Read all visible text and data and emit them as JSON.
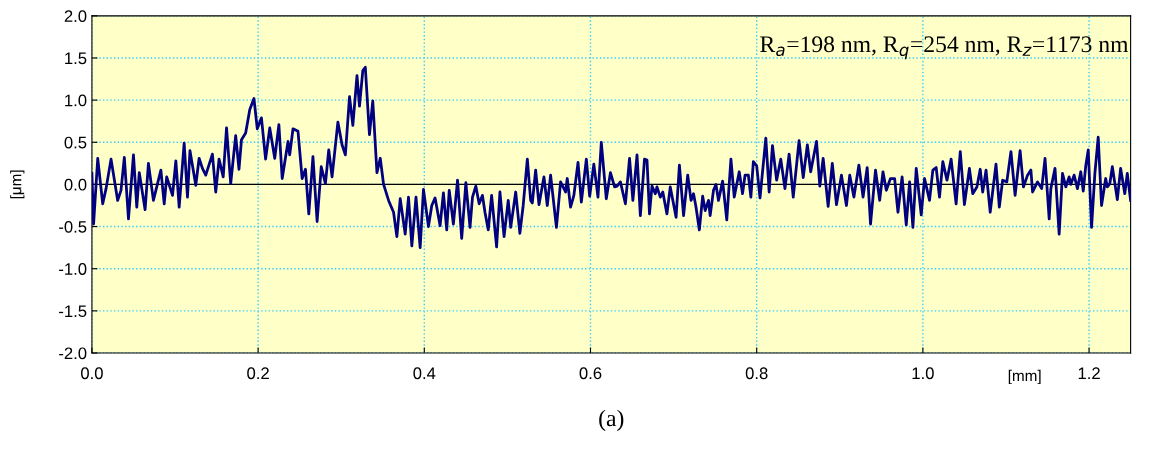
{
  "chart_data": {
    "type": "line",
    "xlabel": "[mm]",
    "ylabel": "[μm]",
    "xlim": [
      0,
      1.25
    ],
    "xticks": [
      {
        "value": 0,
        "label": "0.0"
      },
      0.2,
      0.4,
      0.6,
      0.8,
      {
        "value": 1,
        "label": "1.0"
      },
      1.2
    ],
    "ylim": [
      -2,
      2
    ],
    "yticks": [
      {
        "value": -2,
        "label": "-2.0"
      },
      -1.5,
      {
        "value": -1,
        "label": "-1.0"
      },
      -0.5,
      {
        "value": 0,
        "label": "0.0"
      },
      0.5,
      {
        "value": 1,
        "label": "1.0"
      },
      1.5,
      {
        "value": 2,
        "label": "2.0"
      }
    ],
    "grid": true,
    "legend": false,
    "marker": "none",
    "line_style": "solid",
    "ref_lines": [
      {
        "axis": "y",
        "value": 0,
        "color": "#000000"
      }
    ],
    "annotations": [
      "R$_{a}$=198 nm, R$_{q}$=254 nm, R$_{z}$=1173 nm",
      "(a)"
    ],
    "series": [
      {
        "color": "#000080",
        "x": [
          0.0,
          0.002,
          0.007,
          0.013,
          0.017,
          0.023,
          0.031,
          0.035,
          0.039,
          0.044,
          0.05,
          0.054,
          0.057,
          0.064,
          0.068,
          0.074,
          0.08,
          0.083,
          0.087,
          0.09,
          0.097,
          0.101,
          0.105,
          0.111,
          0.115,
          0.118,
          0.125,
          0.129,
          0.133,
          0.137,
          0.145,
          0.149,
          0.153,
          0.158,
          0.162,
          0.167,
          0.173,
          0.177,
          0.18,
          0.185,
          0.19,
          0.195,
          0.199,
          0.204,
          0.209,
          0.214,
          0.22,
          0.225,
          0.229,
          0.236,
          0.238,
          0.242,
          0.248,
          0.253,
          0.257,
          0.261,
          0.266,
          0.271,
          0.276,
          0.281,
          0.285,
          0.289,
          0.296,
          0.301,
          0.305,
          0.31,
          0.314,
          0.319,
          0.322,
          0.326,
          0.329,
          0.334,
          0.338,
          0.343,
          0.347,
          0.351,
          0.357,
          0.363,
          0.367,
          0.371,
          0.377,
          0.381,
          0.385,
          0.39,
          0.395,
          0.399,
          0.405,
          0.409,
          0.413,
          0.419,
          0.423,
          0.427,
          0.43,
          0.435,
          0.44,
          0.445,
          0.45,
          0.455,
          0.458,
          0.462,
          0.466,
          0.47,
          0.473,
          0.477,
          0.481,
          0.487,
          0.491,
          0.496,
          0.501,
          0.504,
          0.51,
          0.515,
          0.519,
          0.524,
          0.528,
          0.53,
          0.534,
          0.538,
          0.544,
          0.548,
          0.552,
          0.559,
          0.564,
          0.57,
          0.572,
          0.576,
          0.58,
          0.585,
          0.589,
          0.595,
          0.599,
          0.604,
          0.609,
          0.613,
          0.619,
          0.624,
          0.629,
          0.632,
          0.636,
          0.642,
          0.647,
          0.651,
          0.656,
          0.66,
          0.665,
          0.668,
          0.671,
          0.674,
          0.678,
          0.68,
          0.684,
          0.687,
          0.692,
          0.696,
          0.703,
          0.707,
          0.712,
          0.717,
          0.721,
          0.724,
          0.727,
          0.731,
          0.735,
          0.738,
          0.742,
          0.744,
          0.748,
          0.751,
          0.754,
          0.759,
          0.764,
          0.769,
          0.773,
          0.779,
          0.783,
          0.786,
          0.79,
          0.793,
          0.796,
          0.8,
          0.804,
          0.811,
          0.815,
          0.819,
          0.824,
          0.829,
          0.834,
          0.839,
          0.844,
          0.851,
          0.856,
          0.861,
          0.865,
          0.872,
          0.876,
          0.88,
          0.886,
          0.891,
          0.896,
          0.902,
          0.908,
          0.912,
          0.917,
          0.923,
          0.928,
          0.933,
          0.937,
          0.943,
          0.948,
          0.952,
          0.956,
          0.961,
          0.966,
          0.97,
          0.975,
          0.98,
          0.984,
          0.988,
          0.992,
          0.998,
          1.002,
          1.008,
          1.012,
          1.016,
          1.02,
          1.024,
          1.029,
          1.034,
          1.04,
          1.045,
          1.05,
          1.056,
          1.06,
          1.065,
          1.069,
          1.072,
          1.076,
          1.081,
          1.088,
          1.092,
          1.096,
          1.101,
          1.106,
          1.111,
          1.117,
          1.121,
          1.126,
          1.13,
          1.132,
          1.138,
          1.143,
          1.147,
          1.152,
          1.154,
          1.159,
          1.164,
          1.168,
          1.172,
          1.176,
          1.178,
          1.182,
          1.186,
          1.19,
          1.193,
          1.196,
          1.199,
          1.203,
          1.207,
          1.211,
          1.215,
          1.22,
          1.222,
          1.225,
          1.228,
          1.234,
          1.238,
          1.243,
          1.246,
          1.25
        ],
        "values": [
          0.13,
          -0.47,
          0.31,
          -0.23,
          -0.05,
          0.3,
          -0.19,
          -0.07,
          0.32,
          -0.41,
          0.35,
          -0.27,
          0.14,
          -0.3,
          0.25,
          -0.19,
          0.05,
          0.17,
          -0.23,
          0.09,
          -0.13,
          0.28,
          -0.27,
          0.49,
          -0.15,
          0.4,
          -0.01,
          0.31,
          0.19,
          0.11,
          0.36,
          -0.09,
          0.3,
          0.09,
          0.67,
          0.01,
          0.58,
          0.18,
          0.53,
          0.61,
          0.89,
          1.02,
          0.66,
          0.79,
          0.3,
          0.67,
          0.31,
          0.71,
          0.07,
          0.51,
          0.35,
          0.66,
          0.63,
          0.07,
          0.18,
          -0.35,
          0.33,
          -0.44,
          0.21,
          0.01,
          0.41,
          0.09,
          0.74,
          0.47,
          0.35,
          1.04,
          0.7,
          1.29,
          0.93,
          1.35,
          1.39,
          0.59,
          0.99,
          0.14,
          0.31,
          0.0,
          -0.19,
          -0.33,
          -0.62,
          -0.17,
          -0.59,
          -0.15,
          -0.73,
          -0.15,
          -0.75,
          -0.06,
          -0.5,
          -0.25,
          -0.16,
          -0.49,
          -0.1,
          -0.54,
          -0.07,
          -0.47,
          0.05,
          -0.64,
          0.02,
          -0.51,
          -0.15,
          -0.02,
          -0.23,
          -0.13,
          -0.33,
          -0.54,
          -0.13,
          -0.74,
          -0.09,
          -0.62,
          -0.19,
          -0.51,
          -0.09,
          -0.58,
          -0.25,
          0.3,
          -0.19,
          -0.22,
          0.17,
          -0.24,
          0.09,
          -0.25,
          0.11,
          -0.51,
          0.03,
          -0.09,
          0.07,
          -0.27,
          -0.13,
          0.26,
          -0.21,
          0.3,
          -0.14,
          0.24,
          -0.15,
          0.5,
          -0.17,
          0.14,
          -0.03,
          -0.02,
          0.03,
          -0.23,
          0.31,
          -0.19,
          0.35,
          -0.37,
          0.3,
          0.29,
          -0.35,
          -0.02,
          -0.11,
          -0.03,
          -0.15,
          -0.09,
          -0.35,
          -0.03,
          -0.39,
          0.23,
          -0.37,
          0.11,
          -0.19,
          -0.11,
          -0.27,
          -0.54,
          -0.14,
          -0.31,
          -0.19,
          -0.37,
          -0.07,
          0.0,
          -0.19,
          0.04,
          -0.42,
          0.3,
          -0.15,
          0.15,
          -0.11,
          0.11,
          0.11,
          -0.15,
          0.27,
          0.22,
          -0.16,
          0.55,
          -0.09,
          0.46,
          0.05,
          0.3,
          -0.05,
          0.36,
          -0.15,
          0.52,
          0.08,
          0.47,
          0.15,
          0.51,
          -0.02,
          0.31,
          -0.26,
          0.25,
          -0.24,
          0.11,
          -0.25,
          0.11,
          -0.15,
          0.23,
          -0.15,
          0.2,
          -0.47,
          0.17,
          -0.19,
          0.15,
          -0.07,
          0.07,
          0.07,
          -0.33,
          0.09,
          -0.48,
          0.03,
          -0.51,
          0.19,
          -0.36,
          0.07,
          -0.19,
          0.17,
          0.2,
          -0.15,
          0.27,
          0.05,
          0.3,
          -0.23,
          0.39,
          -0.24,
          0.19,
          -0.11,
          -0.03,
          0.18,
          -0.09,
          0.17,
          -0.33,
          0.24,
          -0.27,
          0.05,
          0.03,
          0.39,
          -0.13,
          0.4,
          -0.03,
          0.11,
          0.17,
          -0.09,
          0.03,
          -0.05,
          0.31,
          -0.41,
          -0.05,
          0.19,
          -0.59,
          0.13,
          -0.03,
          0.09,
          0.0,
          0.11,
          -0.05,
          0.15,
          -0.08,
          0.22,
          0.41,
          -0.51,
          0.13,
          0.56,
          -0.25,
          0.07,
          -0.03,
          0.01,
          0.21,
          -0.18,
          0.19,
          -0.11,
          0.13,
          -0.19
        ]
      }
    ]
  }
}
